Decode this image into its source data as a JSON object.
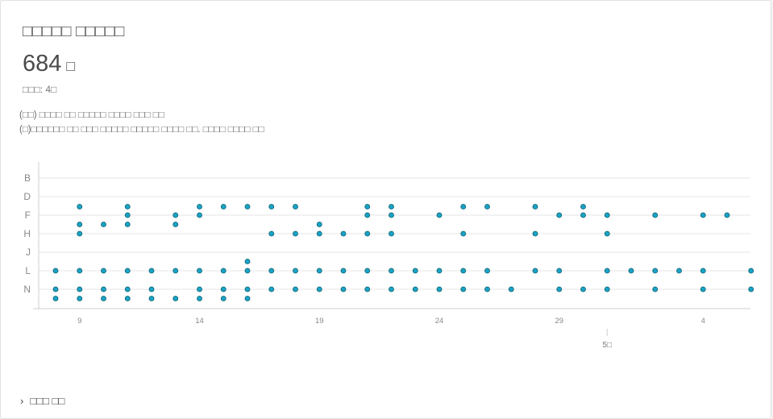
{
  "card": {
    "title": "□□□□□ □□□□□",
    "total_value": "684",
    "total_unit": "□",
    "subinfo": "□□□: 4□",
    "notes": [
      "(□□) □□□□ □□ □□□□□ □□□□ □□□ □□",
      "(□)□□□□□□ □□ □□□ □□□□□ □□□□□ □□□□ □□. □□□□ □□□□ □□"
    ],
    "footer_link": "□□□ □□"
  },
  "colors": {
    "point_fill": "#1aa3c3",
    "point_stroke": "#0b5f72",
    "grid": "#e6e6e6",
    "axis": "#cfcfcf",
    "label": "#888888"
  },
  "chart_data": {
    "type": "scatter",
    "x_ticks": [
      9,
      14,
      19,
      24,
      29,
      4
    ],
    "month_marker": {
      "at_day": 31,
      "label": "5□"
    },
    "y_categories": [
      "B",
      "D",
      "F",
      "H",
      "J",
      "L",
      "N"
    ],
    "xlim": [
      7,
      37
    ],
    "grid": true,
    "points": [
      [
        8,
        "L"
      ],
      [
        8,
        "N"
      ],
      [
        8,
        "N+"
      ],
      [
        9,
        "E"
      ],
      [
        9,
        "F+"
      ],
      [
        9,
        "G+"
      ],
      [
        9,
        "L"
      ],
      [
        9,
        "N"
      ],
      [
        9,
        "N+"
      ],
      [
        10,
        "F+"
      ],
      [
        10,
        "L"
      ],
      [
        10,
        "N"
      ],
      [
        10,
        "N+"
      ],
      [
        11,
        "E"
      ],
      [
        11,
        "F"
      ],
      [
        11,
        "F+"
      ],
      [
        11,
        "L"
      ],
      [
        11,
        "N"
      ],
      [
        11,
        "N+"
      ],
      [
        12,
        "L"
      ],
      [
        12,
        "N"
      ],
      [
        12,
        "N+"
      ],
      [
        13,
        "F"
      ],
      [
        13,
        "F+"
      ],
      [
        13,
        "L"
      ],
      [
        13,
        "N+"
      ],
      [
        14,
        "E"
      ],
      [
        14,
        "F"
      ],
      [
        14,
        "L"
      ],
      [
        14,
        "N"
      ],
      [
        14,
        "N+"
      ],
      [
        15,
        "E"
      ],
      [
        15,
        "L"
      ],
      [
        15,
        "N"
      ],
      [
        15,
        "N+"
      ],
      [
        16,
        "E"
      ],
      [
        16,
        "L-"
      ],
      [
        16,
        "L"
      ],
      [
        16,
        "N"
      ],
      [
        16,
        "N+"
      ],
      [
        17,
        "E"
      ],
      [
        17,
        "H"
      ],
      [
        17,
        "L"
      ],
      [
        17,
        "N"
      ],
      [
        18,
        "E"
      ],
      [
        18,
        "H"
      ],
      [
        18,
        "L"
      ],
      [
        18,
        "N"
      ],
      [
        19,
        "F+"
      ],
      [
        19,
        "H"
      ],
      [
        19,
        "L"
      ],
      [
        19,
        "N"
      ],
      [
        20,
        "H"
      ],
      [
        20,
        "L"
      ],
      [
        20,
        "N"
      ],
      [
        21,
        "E"
      ],
      [
        21,
        "F"
      ],
      [
        21,
        "H"
      ],
      [
        21,
        "L"
      ],
      [
        21,
        "N"
      ],
      [
        22,
        "E"
      ],
      [
        22,
        "F"
      ],
      [
        22,
        "H"
      ],
      [
        22,
        "L"
      ],
      [
        22,
        "N"
      ],
      [
        23,
        "L"
      ],
      [
        23,
        "N"
      ],
      [
        24,
        "F"
      ],
      [
        24,
        "L"
      ],
      [
        24,
        "N"
      ],
      [
        25,
        "E"
      ],
      [
        25,
        "H"
      ],
      [
        25,
        "L"
      ],
      [
        25,
        "N"
      ],
      [
        26,
        "E"
      ],
      [
        26,
        "L"
      ],
      [
        26,
        "N"
      ],
      [
        27,
        "N"
      ],
      [
        28,
        "E"
      ],
      [
        28,
        "H"
      ],
      [
        28,
        "L"
      ],
      [
        29,
        "F"
      ],
      [
        29,
        "L"
      ],
      [
        29,
        "N"
      ],
      [
        30,
        "E"
      ],
      [
        30,
        "F"
      ],
      [
        30,
        "N"
      ],
      [
        31,
        "F"
      ],
      [
        31,
        "H"
      ],
      [
        31,
        "L"
      ],
      [
        31,
        "N"
      ],
      [
        32,
        "L"
      ],
      [
        33,
        "F"
      ],
      [
        33,
        "L"
      ],
      [
        33,
        "N"
      ],
      [
        34,
        "L"
      ],
      [
        35,
        "F"
      ],
      [
        35,
        "L"
      ],
      [
        35,
        "N"
      ],
      [
        36,
        "F"
      ],
      [
        37,
        "L"
      ],
      [
        37,
        "N"
      ]
    ]
  }
}
